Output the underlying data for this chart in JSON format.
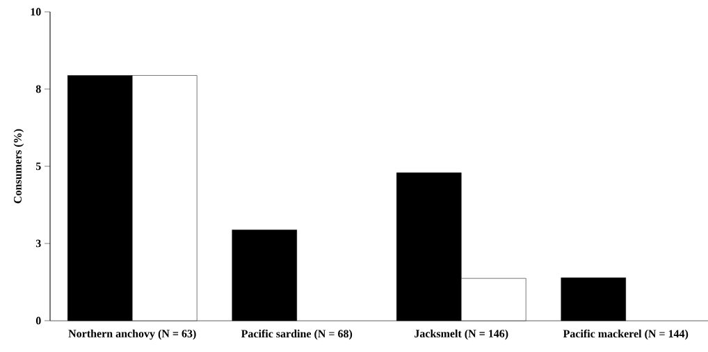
{
  "chart_data": {
    "type": "bar",
    "ylabel": "Consumers (%)",
    "categories": [
      "Northern anchovy (N = 63)",
      "Pacific sardine (N = 68)",
      "Jacksmelt (N = 146)",
      "Pacific mackerel (N = 144)"
    ],
    "series": [
      {
        "color": "#000000",
        "values": [
          7.94,
          2.94,
          4.79,
          1.39
        ]
      },
      {
        "color": "#ffffff",
        "values": [
          7.94,
          null,
          1.37,
          null
        ]
      }
    ],
    "ylim": [
      0,
      10
    ],
    "yticks": [
      0,
      {
        "value": 2.5,
        "label": "3"
      },
      5,
      {
        "value": 7.5,
        "label": "8"
      },
      10
    ],
    "grid": false
  }
}
